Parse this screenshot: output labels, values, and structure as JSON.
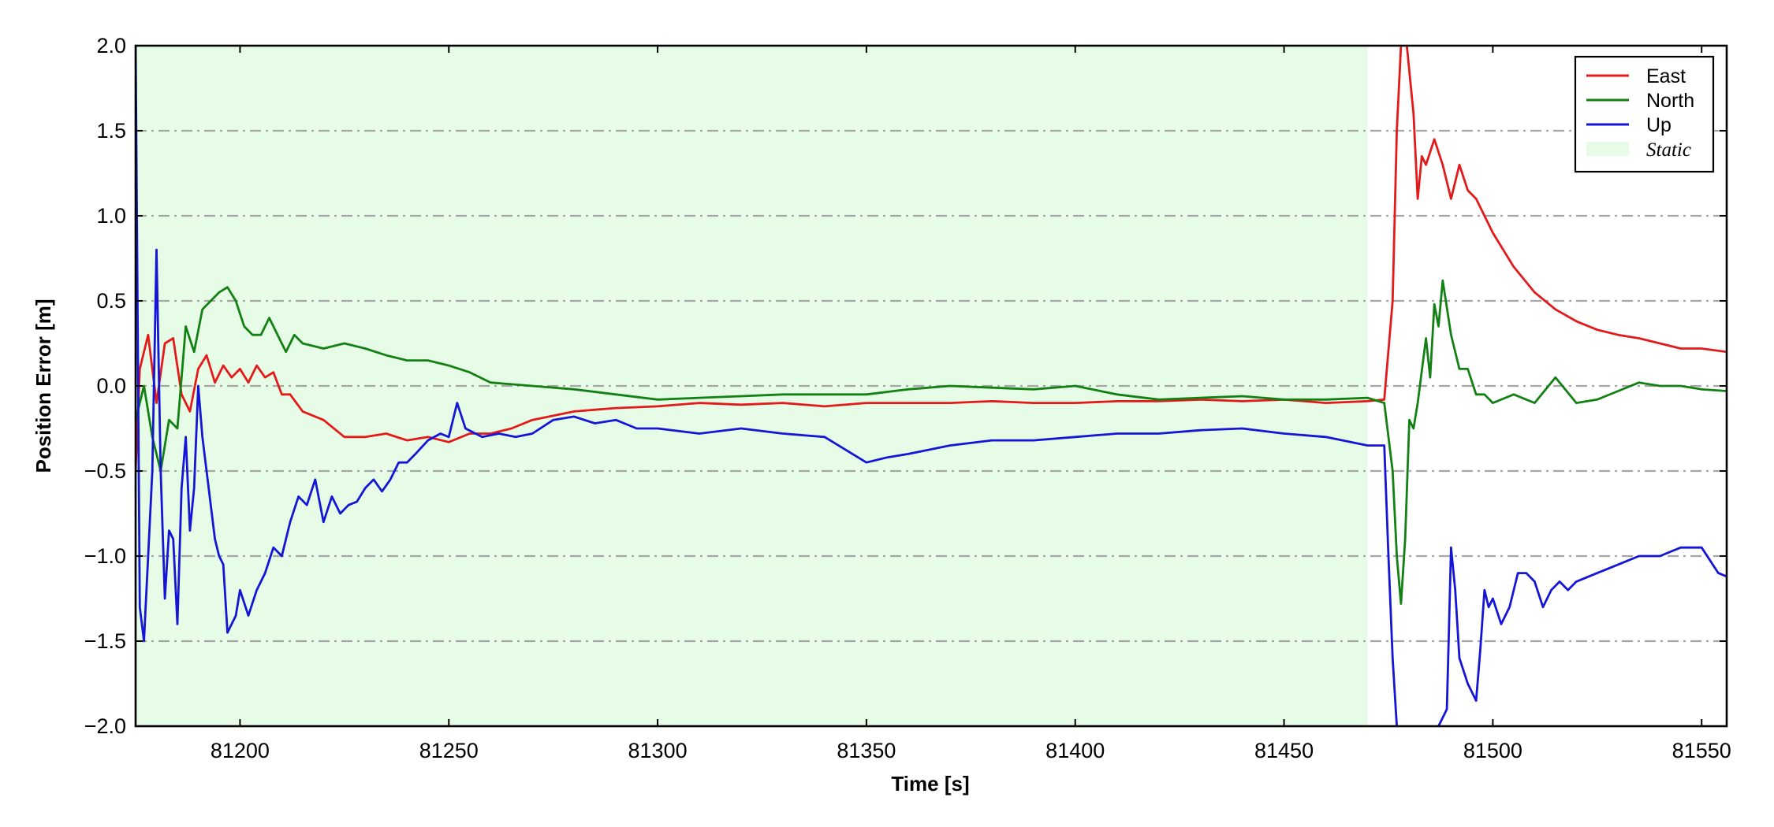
{
  "chart_data": {
    "type": "line",
    "title": "",
    "xlabel": "Time [s]",
    "ylabel": "Position Error [m]",
    "xlim": [
      81175,
      81556
    ],
    "ylim": [
      -2.0,
      2.0
    ],
    "xticks": [
      81200,
      81250,
      81300,
      81350,
      81400,
      81450,
      81500,
      81550
    ],
    "xtick_labels": [
      "81200",
      "81250",
      "81300",
      "81350",
      "81400",
      "81450",
      "81500",
      "81550"
    ],
    "yticks": [
      2.0,
      1.5,
      1.0,
      0.5,
      0.0,
      -0.5,
      -1.0,
      -1.5,
      -2.0
    ],
    "ytick_labels": [
      "2.0",
      "1.5",
      "1.0",
      "0.5",
      "0.0",
      "−0.5",
      "−1.0",
      "−1.5",
      "−2.0"
    ],
    "grid": "horizontal dash-dot",
    "legend_position": "top-right",
    "static_interval": {
      "name": "Static",
      "x_start": 81175,
      "x_end": 81470,
      "color": "#e6fce6"
    },
    "series": [
      {
        "name": "East",
        "color": "#e41a1a",
        "x": [
          81175,
          81176,
          81178,
          81180,
          81182,
          81184,
          81186,
          81188,
          81190,
          81192,
          81194,
          81196,
          81198,
          81200,
          81202,
          81204,
          81206,
          81208,
          81210,
          81212,
          81215,
          81220,
          81225,
          81230,
          81235,
          81240,
          81245,
          81250,
          81255,
          81260,
          81265,
          81270,
          81280,
          81290,
          81300,
          81310,
          81320,
          81330,
          81340,
          81350,
          81360,
          81370,
          81380,
          81390,
          81400,
          81410,
          81420,
          81430,
          81440,
          81450,
          81460,
          81470,
          81474,
          81476,
          81477,
          81478,
          81479,
          81481,
          81482,
          81483,
          81484,
          81486,
          81488,
          81490,
          81492,
          81494,
          81496,
          81498,
          81500,
          81505,
          81510,
          81515,
          81520,
          81525,
          81530,
          81535,
          81540,
          81545,
          81550,
          81556
        ],
        "y": [
          -0.5,
          0.1,
          0.3,
          -0.1,
          0.25,
          0.28,
          -0.05,
          -0.15,
          0.1,
          0.18,
          0.02,
          0.12,
          0.05,
          0.1,
          0.02,
          0.12,
          0.05,
          0.08,
          -0.05,
          -0.05,
          -0.15,
          -0.2,
          -0.3,
          -0.3,
          -0.28,
          -0.32,
          -0.3,
          -0.33,
          -0.28,
          -0.28,
          -0.25,
          -0.2,
          -0.15,
          -0.13,
          -0.12,
          -0.1,
          -0.11,
          -0.1,
          -0.12,
          -0.1,
          -0.1,
          -0.1,
          -0.09,
          -0.1,
          -0.1,
          -0.09,
          -0.09,
          -0.08,
          -0.09,
          -0.08,
          -0.1,
          -0.09,
          -0.08,
          0.5,
          1.5,
          2.0,
          2.1,
          1.6,
          1.1,
          1.35,
          1.3,
          1.45,
          1.3,
          1.1,
          1.3,
          1.15,
          1.1,
          1.0,
          0.9,
          0.7,
          0.55,
          0.45,
          0.38,
          0.33,
          0.3,
          0.28,
          0.25,
          0.22,
          0.22,
          0.2
        ]
      },
      {
        "name": "North",
        "color": "#138013",
        "x": [
          81175,
          81177,
          81179,
          81181,
          81183,
          81185,
          81187,
          81189,
          81191,
          81193,
          81195,
          81197,
          81199,
          81201,
          81203,
          81205,
          81207,
          81209,
          81211,
          81213,
          81215,
          81220,
          81225,
          81230,
          81235,
          81240,
          81245,
          81250,
          81255,
          81260,
          81270,
          81280,
          81290,
          81300,
          81310,
          81320,
          81330,
          81340,
          81350,
          81360,
          81370,
          81380,
          81390,
          81400,
          81410,
          81420,
          81430,
          81440,
          81450,
          81460,
          81470,
          81474,
          81476,
          81477,
          81478,
          81479,
          81480,
          81481,
          81482,
          81484,
          81485,
          81486,
          81487,
          81488,
          81490,
          81492,
          81494,
          81496,
          81498,
          81500,
          81505,
          81510,
          81515,
          81520,
          81525,
          81530,
          81535,
          81540,
          81545,
          81550,
          81556
        ],
        "y": [
          -0.2,
          0.0,
          -0.3,
          -0.5,
          -0.2,
          -0.25,
          0.35,
          0.2,
          0.45,
          0.5,
          0.55,
          0.58,
          0.5,
          0.35,
          0.3,
          0.3,
          0.4,
          0.3,
          0.2,
          0.3,
          0.25,
          0.22,
          0.25,
          0.22,
          0.18,
          0.15,
          0.15,
          0.12,
          0.08,
          0.02,
          0.0,
          -0.02,
          -0.05,
          -0.08,
          -0.07,
          -0.06,
          -0.05,
          -0.05,
          -0.05,
          -0.02,
          0.0,
          -0.01,
          -0.02,
          0.0,
          -0.05,
          -0.08,
          -0.07,
          -0.06,
          -0.08,
          -0.08,
          -0.07,
          -0.1,
          -0.5,
          -1.0,
          -1.28,
          -0.9,
          -0.2,
          -0.25,
          -0.1,
          0.28,
          0.05,
          0.48,
          0.35,
          0.62,
          0.3,
          0.1,
          0.1,
          -0.05,
          -0.05,
          -0.1,
          -0.05,
          -0.1,
          0.05,
          -0.1,
          -0.08,
          -0.03,
          0.02,
          0.0,
          0.0,
          -0.02,
          -0.03
        ]
      },
      {
        "name": "Up",
        "color": "#1515d8",
        "x": [
          81175,
          81176,
          81177,
          81178,
          81179,
          81180,
          81181,
          81182,
          81183,
          81184,
          81185,
          81186,
          81187,
          81188,
          81189,
          81190,
          81191,
          81192,
          81193,
          81194,
          81195,
          81196,
          81197,
          81198,
          81199,
          81200,
          81202,
          81204,
          81206,
          81208,
          81210,
          81212,
          81214,
          81216,
          81218,
          81220,
          81222,
          81224,
          81226,
          81228,
          81230,
          81232,
          81234,
          81236,
          81238,
          81240,
          81242,
          81245,
          81248,
          81250,
          81252,
          81254,
          81258,
          81262,
          81266,
          81270,
          81275,
          81280,
          81285,
          81290,
          81295,
          81300,
          81310,
          81320,
          81330,
          81340,
          81350,
          81355,
          81360,
          81370,
          81380,
          81390,
          81400,
          81410,
          81420,
          81430,
          81440,
          81450,
          81460,
          81470,
          81474,
          81475,
          81476,
          81477,
          81479,
          81485,
          81489,
          81490,
          81491,
          81492,
          81494,
          81496,
          81497,
          81498,
          81499,
          81500,
          81502,
          81504,
          81506,
          81508,
          81510,
          81512,
          81514,
          81516,
          81518,
          81520,
          81525,
          81530,
          81535,
          81540,
          81545,
          81550,
          81554,
          81556
        ],
        "y": [
          2.0,
          -1.3,
          -1.5,
          -1.0,
          -0.5,
          0.8,
          -0.5,
          -1.25,
          -0.85,
          -0.9,
          -1.4,
          -0.6,
          -0.3,
          -0.85,
          -0.6,
          0.0,
          -0.3,
          -0.5,
          -0.7,
          -0.9,
          -1.0,
          -1.05,
          -1.45,
          -1.4,
          -1.35,
          -1.2,
          -1.35,
          -1.2,
          -1.1,
          -0.95,
          -1.0,
          -0.8,
          -0.65,
          -0.7,
          -0.55,
          -0.8,
          -0.65,
          -0.75,
          -0.7,
          -0.68,
          -0.6,
          -0.55,
          -0.62,
          -0.55,
          -0.45,
          -0.45,
          -0.4,
          -0.32,
          -0.28,
          -0.3,
          -0.1,
          -0.25,
          -0.3,
          -0.28,
          -0.3,
          -0.28,
          -0.2,
          -0.18,
          -0.22,
          -0.2,
          -0.25,
          -0.25,
          -0.28,
          -0.25,
          -0.28,
          -0.3,
          -0.45,
          -0.42,
          -0.4,
          -0.35,
          -0.32,
          -0.32,
          -0.3,
          -0.28,
          -0.28,
          -0.26,
          -0.25,
          -0.28,
          -0.3,
          -0.35,
          -0.35,
          -1.0,
          -1.6,
          -2.0,
          -2.2,
          -2.1,
          -1.9,
          -0.95,
          -1.2,
          -1.6,
          -1.75,
          -1.85,
          -1.55,
          -1.2,
          -1.3,
          -1.25,
          -1.4,
          -1.3,
          -1.1,
          -1.1,
          -1.15,
          -1.3,
          -1.2,
          -1.15,
          -1.2,
          -1.15,
          -1.1,
          -1.05,
          -1.0,
          -1.0,
          -0.95,
          -0.95,
          -1.1,
          -1.12
        ]
      }
    ]
  }
}
